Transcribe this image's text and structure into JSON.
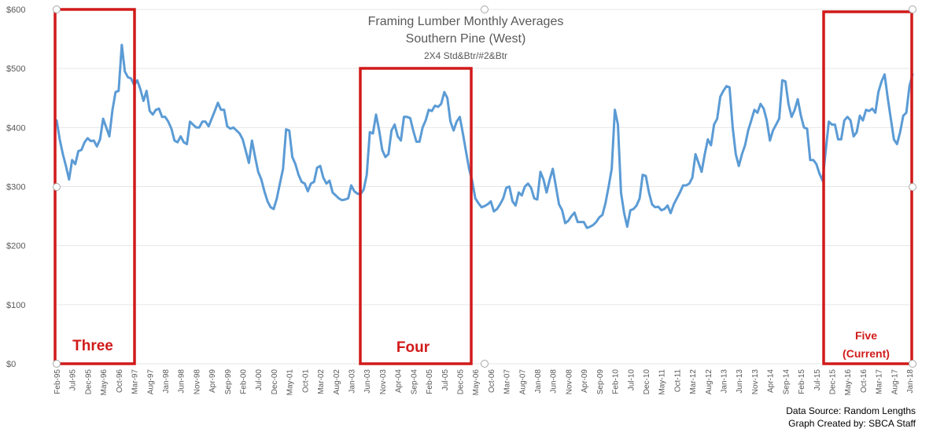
{
  "chart_data": {
    "type": "line",
    "title": "Framing Lumber Monthly Averages",
    "subtitle": "Southern Pine (West)",
    "subtitle2": "2X4 Std&Btr/#2&Btr",
    "y_ticks": [
      "$0",
      "$100",
      "$200",
      "$300",
      "$400",
      "$500",
      "$600"
    ],
    "ylim": [
      0,
      600
    ],
    "x_tick_labels": [
      "Feb-95",
      "Jul-95",
      "Dec-95",
      "May-96",
      "Oct-96",
      "Mar-97",
      "Aug-97",
      "Jan-98",
      "Jun-98",
      "Nov-98",
      "Apr-99",
      "Sep-99",
      "Feb-00",
      "Jul-00",
      "Dec-00",
      "May-01",
      "Oct-01",
      "Mar-02",
      "Aug-02",
      "Jan-03",
      "Jun-03",
      "Nov-03",
      "Apr-04",
      "Sep-04",
      "Feb-05",
      "Jul-05",
      "Dec-05",
      "May-06",
      "Oct-06",
      "Mar-07",
      "Aug-07",
      "Jan-08",
      "Jun-08",
      "Nov-08",
      "Apr-09",
      "Sep-09",
      "Feb-10",
      "Jul-10",
      "Dec-10",
      "May-11",
      "Oct-11",
      "Mar-12",
      "Aug-12",
      "Jan-13",
      "Jun-13",
      "Nov-13",
      "Apr-14",
      "Sep-14",
      "Feb-15",
      "Jul-15",
      "Dec-15",
      "May-16",
      "Oct-16",
      "Mar-17",
      "Aug-17",
      "Jan-18"
    ],
    "series_color": "#5b9bd5",
    "series": [
      {
        "values": [
          412,
          380,
          355,
          335,
          312,
          345,
          338,
          360,
          362,
          375,
          382,
          377,
          378,
          368,
          380,
          415,
          400,
          385,
          430,
          460,
          462,
          540,
          495,
          485,
          483,
          472,
          480,
          465,
          445,
          462,
          428,
          422,
          430,
          432,
          418,
          418,
          410,
          398,
          378,
          375,
          385,
          375,
          372,
          410,
          405,
          400,
          400,
          410,
          410,
          402,
          415,
          428,
          442,
          430,
          430,
          402,
          398,
          400,
          395,
          390,
          380,
          360,
          340,
          378,
          350,
          325,
          312,
          292,
          275,
          265,
          262,
          280,
          305,
          330,
          397,
          395,
          350,
          338,
          320,
          308,
          305,
          292,
          305,
          308,
          332,
          335,
          315,
          305,
          310,
          290,
          285,
          280,
          277,
          278,
          280,
          302,
          292,
          288,
          287,
          295,
          320,
          392,
          390,
          422,
          395,
          362,
          350,
          355,
          395,
          405,
          385,
          378,
          418,
          418,
          416,
          395,
          376,
          376,
          400,
          412,
          430,
          428,
          437,
          435,
          440,
          460,
          450,
          410,
          395,
          410,
          418,
          390,
          360,
          330,
          310,
          280,
          272,
          265,
          267,
          270,
          275,
          258,
          262,
          270,
          280,
          298,
          300,
          275,
          268,
          290,
          285,
          300,
          305,
          298,
          280,
          278,
          325,
          312,
          290,
          312,
          330,
          300,
          270,
          260,
          238,
          242,
          250,
          256,
          240,
          240,
          240,
          230,
          232,
          235,
          240,
          248,
          252,
          272,
          300,
          330,
          430,
          405,
          290,
          255,
          232,
          260,
          262,
          268,
          280,
          320,
          318,
          290,
          270,
          265,
          266,
          260,
          262,
          268,
          255,
          270,
          280,
          290,
          302,
          302,
          305,
          315,
          355,
          340,
          325,
          355,
          380,
          370,
          405,
          415,
          452,
          462,
          470,
          468,
          400,
          355,
          335,
          355,
          370,
          395,
          412,
          430,
          425,
          440,
          432,
          412,
          378,
          395,
          405,
          415,
          480,
          478,
          440,
          418,
          430,
          448,
          420,
          400,
          398,
          345,
          345,
          338,
          322,
          310,
          360,
          410,
          405,
          405,
          380,
          380,
          412,
          418,
          412,
          385,
          392,
          420,
          412,
          430,
          428,
          432,
          425,
          460,
          478,
          490,
          450,
          415,
          380,
          372,
          392,
          420,
          425,
          470,
          490
        ]
      }
    ],
    "annotations": [
      {
        "label": "Three"
      },
      {
        "label": "Four"
      },
      {
        "label": "Five",
        "label2": "(Current)"
      }
    ]
  },
  "footer": {
    "source": "Data Source: Random Lengths",
    "credit": "Graph Created by: SBCA Staff"
  }
}
